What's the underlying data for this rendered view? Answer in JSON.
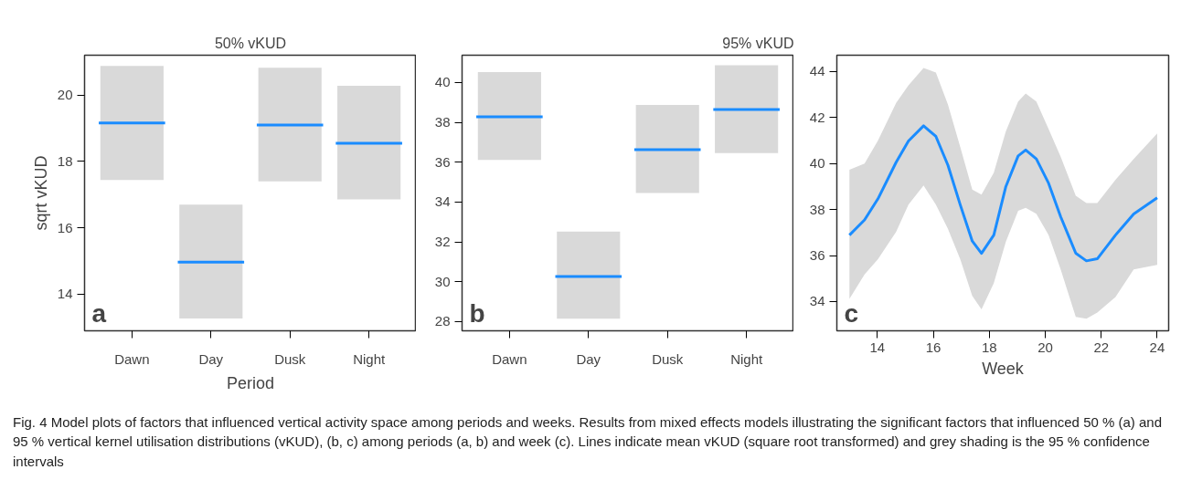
{
  "chart_data": [
    {
      "type": "box",
      "title": "50% vKUD",
      "xlabel": "Period",
      "ylabel": "sqrt vKUD",
      "categories": [
        "Dawn",
        "Day",
        "Dusk",
        "Night"
      ],
      "ylim": [
        12.9,
        21.2
      ],
      "yticks": [
        14,
        16,
        18,
        20
      ],
      "grid": false,
      "series": [
        {
          "color": "#d9d9d9",
          "boxes": [
            {
              "low": 17.44,
              "q1": 17.44,
              "median": 19.16,
              "q3": 20.88,
              "high": 20.88
            },
            {
              "low": 13.27,
              "q1": 13.27,
              "median": 14.97,
              "q3": 16.7,
              "high": 16.7
            },
            {
              "low": 17.4,
              "q1": 17.4,
              "median": 19.1,
              "q3": 20.82,
              "high": 20.82
            },
            {
              "low": 16.86,
              "q1": 16.86,
              "median": 18.55,
              "q3": 20.28,
              "high": 20.28
            }
          ]
        }
      ],
      "annotations": [
        "a",
        "Fig. 4  Model plots of factors that influenced vertical activity space among periods and weeks. Results from mixed effects models illustrating the significant factors that influenced 50 % (a) and 95 % vertical kernel utilisation distributions (vKUD), (b, c) among periods (a, b) and week (c). Lines indicate mean vKUD (square root transformed) and grey shading is the 95 % confidence intervals"
      ]
    },
    {
      "type": "box",
      "title": "95% vKUD",
      "categories": [
        "Dawn",
        "Day",
        "Dusk",
        "Night"
      ],
      "ylim": [
        27.54,
        41.37
      ],
      "yticks": [
        28,
        30,
        32,
        34,
        36,
        38,
        40
      ],
      "grid": false,
      "series": [
        {
          "color": "#d9d9d9",
          "boxes": [
            {
              "low": 36.11,
              "q1": 36.11,
              "median": 38.28,
              "q3": 40.52,
              "high": 40.52
            },
            {
              "low": 28.15,
              "q1": 28.15,
              "median": 30.27,
              "q3": 32.52,
              "high": 32.52
            },
            {
              "low": 34.45,
              "q1": 34.45,
              "median": 36.63,
              "q3": 38.87,
              "high": 38.87
            },
            {
              "low": 36.46,
              "q1": 36.46,
              "median": 38.64,
              "q3": 40.87,
              "high": 40.87
            }
          ]
        }
      ],
      "annotations": [
        "b"
      ]
    },
    {
      "type": "line",
      "xlabel": "Week",
      "xlim": [
        12.55,
        24.41
      ],
      "xticks": [
        14,
        16,
        18,
        20,
        22,
        24
      ],
      "ylim": [
        32.73,
        44.71
      ],
      "yticks": [
        34,
        36,
        38,
        40,
        42,
        44
      ],
      "grid": false,
      "line_style": "solid",
      "x": [
        13.0,
        13.54,
        14.02,
        14.67,
        15.11,
        15.65,
        16.09,
        16.52,
        16.96,
        17.39,
        17.72,
        18.16,
        18.59,
        19.03,
        19.3,
        19.68,
        20.12,
        20.55,
        21.09,
        21.47,
        21.86,
        22.51,
        23.16,
        24.0
      ],
      "series": [
        {
          "color": "#1a8cff",
          "values": [
            36.89,
            37.55,
            38.47,
            40.06,
            40.98,
            41.64,
            41.18,
            39.93,
            38.21,
            36.63,
            36.1,
            36.89,
            39.0,
            40.33,
            40.59,
            40.2,
            39.14,
            37.69,
            36.1,
            35.77,
            35.86,
            36.89,
            37.81,
            38.51
          ],
          "upper": [
            39.73,
            40.0,
            41.0,
            42.64,
            43.4,
            44.15,
            43.96,
            42.57,
            40.72,
            38.87,
            38.65,
            39.6,
            41.4,
            42.7,
            43.04,
            42.7,
            41.5,
            40.3,
            38.6,
            38.28,
            38.28,
            39.3,
            40.2,
            41.31
          ],
          "lower": [
            34.12,
            35.18,
            35.84,
            37.03,
            38.21,
            39.05,
            38.21,
            37.16,
            35.84,
            34.25,
            33.66,
            34.8,
            36.6,
            37.95,
            38.08,
            37.82,
            36.89,
            35.4,
            33.33,
            33.26,
            33.52,
            34.2,
            35.4,
            35.6
          ]
        }
      ],
      "annotations": [
        "c"
      ]
    }
  ]
}
